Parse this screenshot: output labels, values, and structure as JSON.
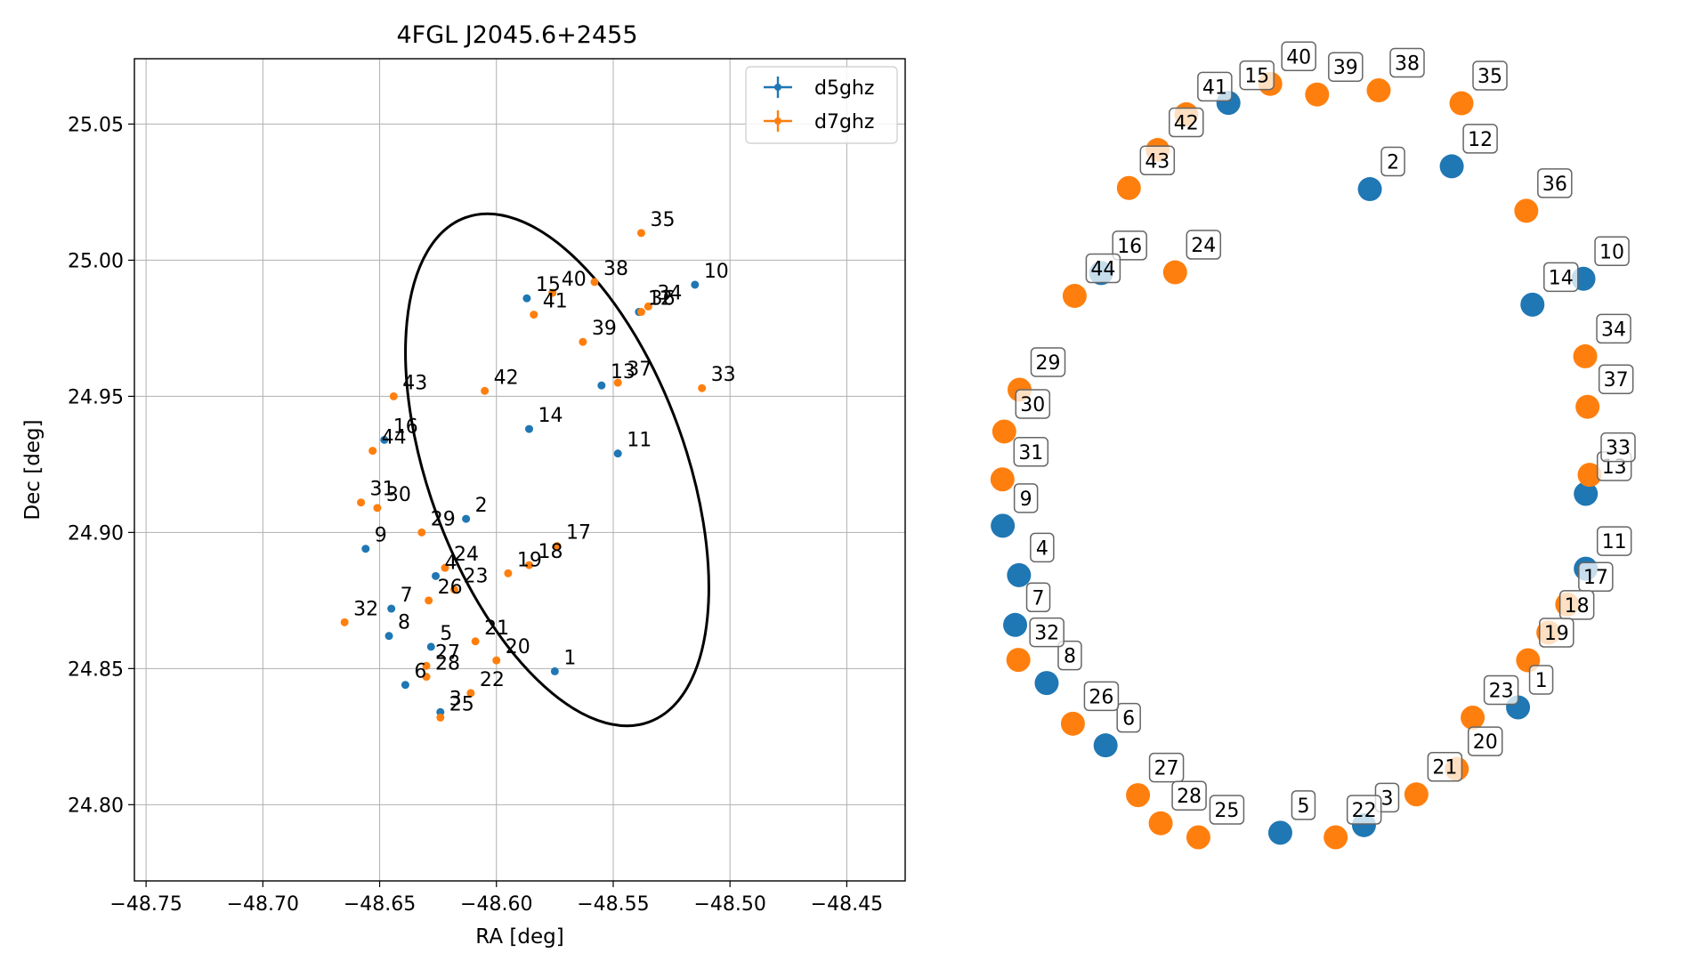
{
  "chart_data": [
    {
      "type": "scatter",
      "title": "4FGL J2045.6+2455",
      "xlabel": "RA [deg]",
      "ylabel": "Dec [deg]",
      "xlim": [
        -48.755,
        -48.425
      ],
      "ylim": [
        24.772,
        25.074
      ],
      "xticks": [
        -48.75,
        -48.7,
        -48.65,
        -48.6,
        -48.55,
        -48.5,
        -48.45
      ],
      "xtick_labels": [
        "−48.75",
        "−48.70",
        "−48.65",
        "−48.60",
        "−48.55",
        "−48.50",
        "−48.45"
      ],
      "yticks": [
        24.8,
        24.85,
        24.9,
        24.95,
        25.0,
        25.05
      ],
      "ytick_labels": [
        "24.80",
        "24.85",
        "24.90",
        "24.95",
        "25.00",
        "25.05"
      ],
      "grid": true,
      "legend_position": "top-right",
      "colors": {
        "d5ghz": "#1f77b4",
        "d7ghz": "#ff7f0e",
        "ellipse": "#000000"
      },
      "ellipse": {
        "center": [
          -48.574,
          24.923
        ],
        "semi_major": 0.093,
        "semi_minor": 0.055,
        "angle_deg": 110
      },
      "series": [
        {
          "name": "d5ghz",
          "points": [
            {
              "label": "1",
              "x": -48.575,
              "y": 24.849
            },
            {
              "label": "2",
              "x": -48.613,
              "y": 24.905
            },
            {
              "label": "3",
              "x": -48.624,
              "y": 24.834
            },
            {
              "label": "4",
              "x": -48.626,
              "y": 24.884
            },
            {
              "label": "5",
              "x": -48.628,
              "y": 24.858
            },
            {
              "label": "6",
              "x": -48.639,
              "y": 24.844
            },
            {
              "label": "7",
              "x": -48.645,
              "y": 24.872
            },
            {
              "label": "8",
              "x": -48.646,
              "y": 24.862
            },
            {
              "label": "9",
              "x": -48.656,
              "y": 24.894
            },
            {
              "label": "10",
              "x": -48.515,
              "y": 24.991
            },
            {
              "label": "11",
              "x": -48.548,
              "y": 24.929
            },
            {
              "label": "12",
              "x": -48.539,
              "y": 24.981
            },
            {
              "label": "13",
              "x": -48.555,
              "y": 24.954
            },
            {
              "label": "14",
              "x": -48.586,
              "y": 24.938
            },
            {
              "label": "15",
              "x": -48.587,
              "y": 24.986
            },
            {
              "label": "16",
              "x": -48.648,
              "y": 24.934
            }
          ]
        },
        {
          "name": "d7ghz",
          "points": [
            {
              "label": "17",
              "x": -48.574,
              "y": 24.895
            },
            {
              "label": "18",
              "x": -48.586,
              "y": 24.888
            },
            {
              "label": "19",
              "x": -48.595,
              "y": 24.885
            },
            {
              "label": "20",
              "x": -48.6,
              "y": 24.853
            },
            {
              "label": "21",
              "x": -48.609,
              "y": 24.86
            },
            {
              "label": "22",
              "x": -48.611,
              "y": 24.841
            },
            {
              "label": "23",
              "x": -48.618,
              "y": 24.879
            },
            {
              "label": "24",
              "x": -48.622,
              "y": 24.887
            },
            {
              "label": "25",
              "x": -48.624,
              "y": 24.832
            },
            {
              "label": "26",
              "x": -48.629,
              "y": 24.875
            },
            {
              "label": "27",
              "x": -48.63,
              "y": 24.851
            },
            {
              "label": "28",
              "x": -48.63,
              "y": 24.847
            },
            {
              "label": "29",
              "x": -48.632,
              "y": 24.9
            },
            {
              "label": "30",
              "x": -48.651,
              "y": 24.909
            },
            {
              "label": "31",
              "x": -48.658,
              "y": 24.911
            },
            {
              "label": "32",
              "x": -48.665,
              "y": 24.867
            },
            {
              "label": "33",
              "x": -48.512,
              "y": 24.953
            },
            {
              "label": "34",
              "x": -48.535,
              "y": 24.983
            },
            {
              "label": "35",
              "x": -48.538,
              "y": 25.01
            },
            {
              "label": "36",
              "x": -48.538,
              "y": 24.981
            },
            {
              "label": "37",
              "x": -48.548,
              "y": 24.955
            },
            {
              "label": "38",
              "x": -48.558,
              "y": 24.992
            },
            {
              "label": "39",
              "x": -48.563,
              "y": 24.97
            },
            {
              "label": "40",
              "x": -48.576,
              "y": 24.988
            },
            {
              "label": "41",
              "x": -48.584,
              "y": 24.98
            },
            {
              "label": "42",
              "x": -48.605,
              "y": 24.952
            },
            {
              "label": "43",
              "x": -48.644,
              "y": 24.95
            },
            {
              "label": "44",
              "x": -48.653,
              "y": 24.93
            }
          ]
        }
      ]
    },
    {
      "type": "scatter",
      "description_note": "",
      "colors": {
        "d5ghz": "#1f77b4",
        "d7ghz": "#ff7f0e"
      },
      "series": [
        {
          "name": "d5ghz",
          "points": [
            {
              "label": "1",
              "x": 0.757,
              "y": -0.658
            },
            {
              "label": "2",
              "x": 0.254,
              "y": 0.706
            },
            {
              "label": "3",
              "x": 0.234,
              "y": -0.968
            },
            {
              "label": "4",
              "x": -0.937,
              "y": -0.31
            },
            {
              "label": "5",
              "x": -0.05,
              "y": -0.988
            },
            {
              "label": "6",
              "x": -0.643,
              "y": -0.758
            },
            {
              "label": "7",
              "x": -0.95,
              "y": -0.441
            },
            {
              "label": "8",
              "x": -0.843,
              "y": -0.594
            },
            {
              "label": "9",
              "x": -0.992,
              "y": -0.18
            },
            {
              "label": "10",
              "x": 0.979,
              "y": 0.47
            },
            {
              "label": "11",
              "x": 0.987,
              "y": -0.293
            },
            {
              "label": "12",
              "x": 0.532,
              "y": 0.766
            },
            {
              "label": "13",
              "x": 0.987,
              "y": -0.096
            },
            {
              "label": "14",
              "x": 0.806,
              "y": 0.402
            },
            {
              "label": "15",
              "x": -0.226,
              "y": 0.933
            },
            {
              "label": "16",
              "x": -0.658,
              "y": 0.485
            }
          ]
        },
        {
          "name": "d7ghz",
          "points": [
            {
              "label": "17",
              "x": 0.924,
              "y": -0.387
            },
            {
              "label": "18",
              "x": 0.86,
              "y": -0.461
            },
            {
              "label": "19",
              "x": 0.791,
              "y": -0.534
            },
            {
              "label": "20",
              "x": 0.549,
              "y": -0.82
            },
            {
              "label": "21",
              "x": 0.412,
              "y": -0.887
            },
            {
              "label": "22",
              "x": 0.138,
              "y": -1.0
            },
            {
              "label": "23",
              "x": 0.603,
              "y": -0.685
            },
            {
              "label": "24",
              "x": -0.407,
              "y": 0.487
            },
            {
              "label": "25",
              "x": -0.328,
              "y": -1.0
            },
            {
              "label": "26",
              "x": -0.754,
              "y": -0.701
            },
            {
              "label": "27",
              "x": -0.533,
              "y": -0.889
            },
            {
              "label": "28",
              "x": -0.456,
              "y": -0.963
            },
            {
              "label": "29",
              "x": -0.935,
              "y": 0.178
            },
            {
              "label": "30",
              "x": -0.987,
              "y": 0.068
            },
            {
              "label": "31",
              "x": -0.993,
              "y": -0.058
            },
            {
              "label": "32",
              "x": -0.939,
              "y": -0.533
            },
            {
              "label": "33",
              "x": 1.0,
              "y": -0.046
            },
            {
              "label": "34",
              "x": 0.985,
              "y": 0.266
            },
            {
              "label": "35",
              "x": 0.565,
              "y": 0.932
            },
            {
              "label": "36",
              "x": 0.785,
              "y": 0.649
            },
            {
              "label": "37",
              "x": 0.993,
              "y": 0.133
            },
            {
              "label": "38",
              "x": 0.284,
              "y": 0.966
            },
            {
              "label": "39",
              "x": 0.075,
              "y": 0.955
            },
            {
              "label": "40",
              "x": -0.084,
              "y": 0.983
            },
            {
              "label": "41",
              "x": -0.369,
              "y": 0.903
            },
            {
              "label": "42",
              "x": -0.466,
              "y": 0.809
            },
            {
              "label": "43",
              "x": -0.564,
              "y": 0.709
            },
            {
              "label": "44",
              "x": -0.748,
              "y": 0.425
            }
          ]
        }
      ]
    }
  ]
}
